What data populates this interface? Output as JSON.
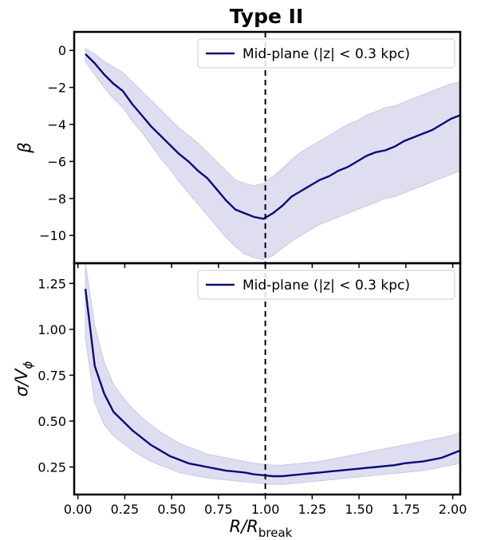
{
  "figure_title": "Type II",
  "xlabel_main": "R/R",
  "xlabel_sub": "break",
  "colors": {
    "line": "#0a0a78",
    "band": "#c8c8e6",
    "vline": "#000000"
  },
  "chart_data": [
    {
      "type": "line",
      "panel": "top",
      "ylabel": "β",
      "xlim": [
        -0.02,
        2.04
      ],
      "ylim": [
        -11.5,
        1.0
      ],
      "xticks": [
        0.0,
        0.25,
        0.5,
        0.75,
        1.0,
        1.25,
        1.5,
        1.75,
        2.0
      ],
      "yticks": [
        0,
        -2,
        -4,
        -6,
        -8,
        -10
      ],
      "ytick_labels": [
        "0",
        "−2",
        "−4",
        "−6",
        "−8",
        "−10"
      ],
      "vline_x": 1.0,
      "legend": {
        "label": "Mid-plane (|z| < 0.3 kpc)",
        "placement": "upper-right"
      },
      "series": [
        {
          "name": "Mid-plane (|z| < 0.3 kpc)",
          "x": [
            0.04,
            0.09,
            0.14,
            0.19,
            0.24,
            0.29,
            0.34,
            0.39,
            0.44,
            0.49,
            0.54,
            0.59,
            0.64,
            0.69,
            0.74,
            0.79,
            0.84,
            0.89,
            0.94,
            0.99,
            1.04,
            1.09,
            1.14,
            1.19,
            1.24,
            1.29,
            1.34,
            1.39,
            1.44,
            1.49,
            1.54,
            1.59,
            1.64,
            1.69,
            1.74,
            1.79,
            1.84,
            1.89,
            1.94,
            1.99,
            2.04
          ],
          "y": [
            -0.2,
            -0.7,
            -1.3,
            -1.8,
            -2.2,
            -2.9,
            -3.5,
            -4.1,
            -4.6,
            -5.1,
            -5.6,
            -6.0,
            -6.5,
            -6.9,
            -7.5,
            -8.1,
            -8.6,
            -8.8,
            -9.0,
            -9.1,
            -8.8,
            -8.4,
            -7.9,
            -7.6,
            -7.3,
            -7.0,
            -6.8,
            -6.5,
            -6.3,
            -6.0,
            -5.7,
            -5.5,
            -5.4,
            -5.2,
            -4.9,
            -4.7,
            -4.5,
            -4.3,
            -4.0,
            -3.7,
            -3.5
          ],
          "lower": [
            -0.6,
            -1.3,
            -2.0,
            -2.6,
            -3.1,
            -3.8,
            -4.4,
            -5.1,
            -5.8,
            -6.4,
            -7.1,
            -7.7,
            -8.3,
            -8.9,
            -9.5,
            -10.1,
            -10.6,
            -11.0,
            -11.2,
            -11.3,
            -11.1,
            -10.7,
            -10.3,
            -10.0,
            -9.7,
            -9.4,
            -9.2,
            -9.0,
            -8.8,
            -8.6,
            -8.4,
            -8.2,
            -8.0,
            -7.9,
            -7.7,
            -7.5,
            -7.3,
            -7.1,
            -6.9,
            -6.7,
            -6.5
          ],
          "upper": [
            0.1,
            -0.2,
            -0.6,
            -0.9,
            -1.2,
            -1.7,
            -2.2,
            -2.7,
            -3.2,
            -3.7,
            -4.2,
            -4.6,
            -5.0,
            -5.5,
            -6.0,
            -6.5,
            -7.0,
            -7.2,
            -7.3,
            -7.2,
            -6.8,
            -6.4,
            -5.9,
            -5.5,
            -5.2,
            -4.9,
            -4.6,
            -4.3,
            -4.0,
            -3.8,
            -3.5,
            -3.3,
            -3.1,
            -3.0,
            -2.8,
            -2.6,
            -2.4,
            -2.2,
            -2.0,
            -1.8,
            -1.7
          ]
        }
      ]
    },
    {
      "type": "line",
      "panel": "bottom",
      "ylabel": "σ/V",
      "ylabel_sub": "ϕ",
      "xlim": [
        -0.02,
        2.04
      ],
      "ylim": [
        0.1,
        1.36
      ],
      "xticks": [
        0.0,
        0.25,
        0.5,
        0.75,
        1.0,
        1.25,
        1.5,
        1.75,
        2.0
      ],
      "xtick_labels": [
        "0.00",
        "0.25",
        "0.50",
        "0.75",
        "1.00",
        "1.25",
        "1.50",
        "1.75",
        "2.00"
      ],
      "yticks": [
        0.25,
        0.5,
        0.75,
        1.0,
        1.25
      ],
      "ytick_labels": [
        "0.25",
        "0.50",
        "0.75",
        "1.00",
        "1.25"
      ],
      "vline_x": 1.0,
      "legend": {
        "label": "Mid-plane (|z| < 0.3 kpc)",
        "placement": "upper-right"
      },
      "series": [
        {
          "name": "Mid-plane (|z| < 0.3 kpc)",
          "x": [
            0.04,
            0.09,
            0.14,
            0.19,
            0.24,
            0.29,
            0.34,
            0.39,
            0.44,
            0.49,
            0.54,
            0.59,
            0.64,
            0.69,
            0.74,
            0.79,
            0.84,
            0.89,
            0.94,
            0.99,
            1.04,
            1.09,
            1.14,
            1.19,
            1.24,
            1.29,
            1.34,
            1.39,
            1.44,
            1.49,
            1.54,
            1.59,
            1.64,
            1.69,
            1.74,
            1.79,
            1.84,
            1.89,
            1.94,
            1.99,
            2.04
          ],
          "y": [
            1.22,
            0.8,
            0.65,
            0.55,
            0.5,
            0.45,
            0.41,
            0.37,
            0.34,
            0.31,
            0.29,
            0.27,
            0.26,
            0.25,
            0.24,
            0.23,
            0.225,
            0.22,
            0.21,
            0.205,
            0.2,
            0.2,
            0.205,
            0.21,
            0.215,
            0.22,
            0.225,
            0.23,
            0.235,
            0.24,
            0.245,
            0.25,
            0.255,
            0.26,
            0.27,
            0.275,
            0.28,
            0.29,
            0.3,
            0.32,
            0.34
          ],
          "lower": [
            0.95,
            0.6,
            0.48,
            0.42,
            0.38,
            0.34,
            0.31,
            0.28,
            0.26,
            0.24,
            0.22,
            0.21,
            0.2,
            0.19,
            0.185,
            0.18,
            0.175,
            0.17,
            0.165,
            0.16,
            0.155,
            0.155,
            0.16,
            0.165,
            0.17,
            0.175,
            0.18,
            0.185,
            0.19,
            0.195,
            0.2,
            0.205,
            0.21,
            0.215,
            0.22,
            0.225,
            0.23,
            0.24,
            0.25,
            0.26,
            0.27
          ],
          "upper": [
            1.36,
            1.02,
            0.82,
            0.7,
            0.63,
            0.57,
            0.52,
            0.48,
            0.44,
            0.41,
            0.38,
            0.36,
            0.34,
            0.32,
            0.31,
            0.3,
            0.29,
            0.28,
            0.27,
            0.265,
            0.26,
            0.26,
            0.265,
            0.27,
            0.275,
            0.28,
            0.29,
            0.3,
            0.31,
            0.32,
            0.33,
            0.34,
            0.35,
            0.36,
            0.37,
            0.38,
            0.39,
            0.4,
            0.41,
            0.42,
            0.44
          ]
        }
      ]
    }
  ]
}
